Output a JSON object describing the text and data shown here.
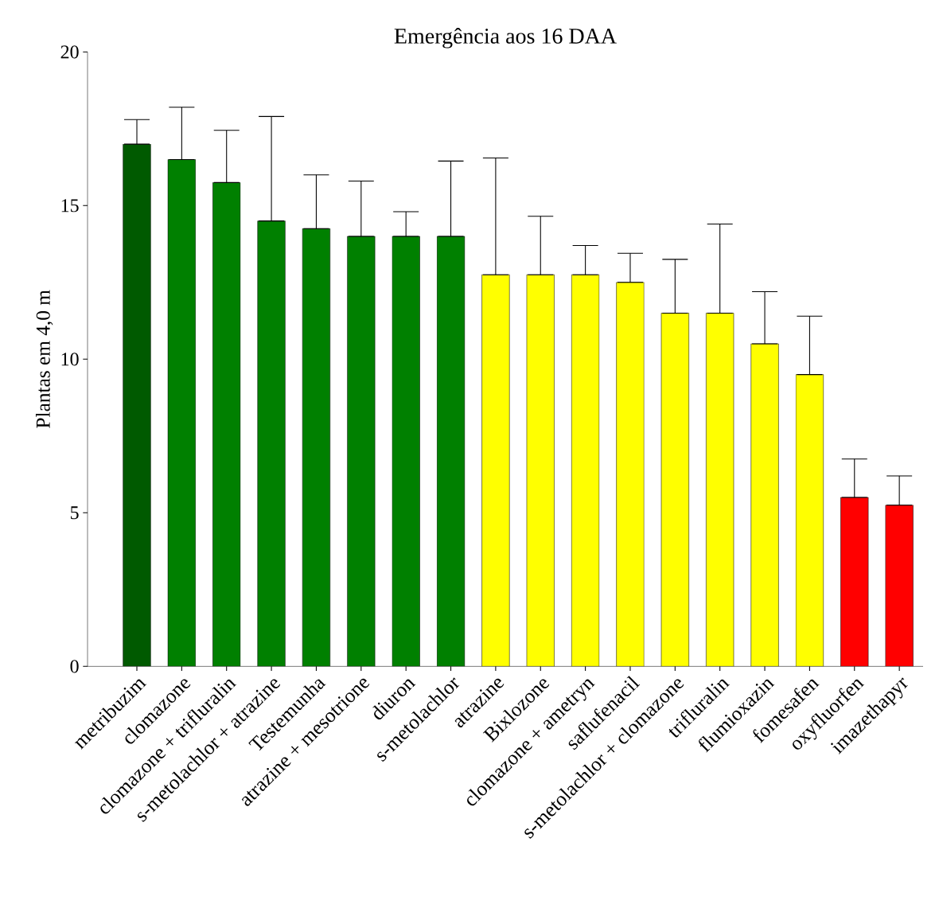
{
  "chart_data": {
    "type": "bar",
    "title": "Emergência aos 16 DAA",
    "ylabel": "Plantas em 4,0 m",
    "categories": [
      "metribuzim",
      "clomazone",
      "clomazone + trifluralin",
      "s-metolachlor + atrazine",
      "Testemunha",
      "atrazine + mesotrione",
      "diuron",
      "s-metolachlor",
      "atrazine",
      "Bixlozone",
      "clomazone + ametryn",
      "saflufenacil",
      "s-metolachlor + clomazone",
      "trifluralin",
      "flumioxazin",
      "fomesafen",
      "oxyfluorfen",
      "imazethapyr"
    ],
    "values": [
      17.0,
      16.5,
      15.75,
      14.5,
      14.25,
      14.0,
      14.0,
      14.0,
      12.75,
      12.75,
      12.75,
      12.5,
      11.5,
      11.5,
      10.5,
      9.5,
      5.5,
      5.25
    ],
    "errors": [
      [
        17.0,
        17.8
      ],
      [
        16.5,
        18.2
      ],
      [
        15.75,
        17.45
      ],
      [
        14.5,
        17.9
      ],
      [
        14.25,
        16.0
      ],
      [
        14.0,
        15.8
      ],
      [
        14.0,
        14.8
      ],
      [
        14.0,
        16.45
      ],
      [
        12.75,
        16.55
      ],
      [
        12.75,
        14.65
      ],
      [
        12.75,
        13.7
      ],
      [
        12.5,
        13.45
      ],
      [
        11.5,
        13.25
      ],
      [
        11.5,
        14.4
      ],
      [
        10.5,
        12.2
      ],
      [
        9.5,
        11.4
      ],
      [
        5.5,
        6.75
      ],
      [
        5.25,
        6.2
      ]
    ],
    "colors": [
      "#005a00",
      "#008000",
      "#008000",
      "#008000",
      "#008000",
      "#008000",
      "#008000",
      "#008000",
      "#ffff00",
      "#ffff00",
      "#ffff00",
      "#ffff00",
      "#ffff00",
      "#ffff00",
      "#ffff00",
      "#ffff00",
      "#ff0000",
      "#ff0000"
    ],
    "ylim": [
      0,
      20
    ],
    "yticks": [
      0,
      5,
      10,
      15,
      20
    ],
    "grid": false
  }
}
